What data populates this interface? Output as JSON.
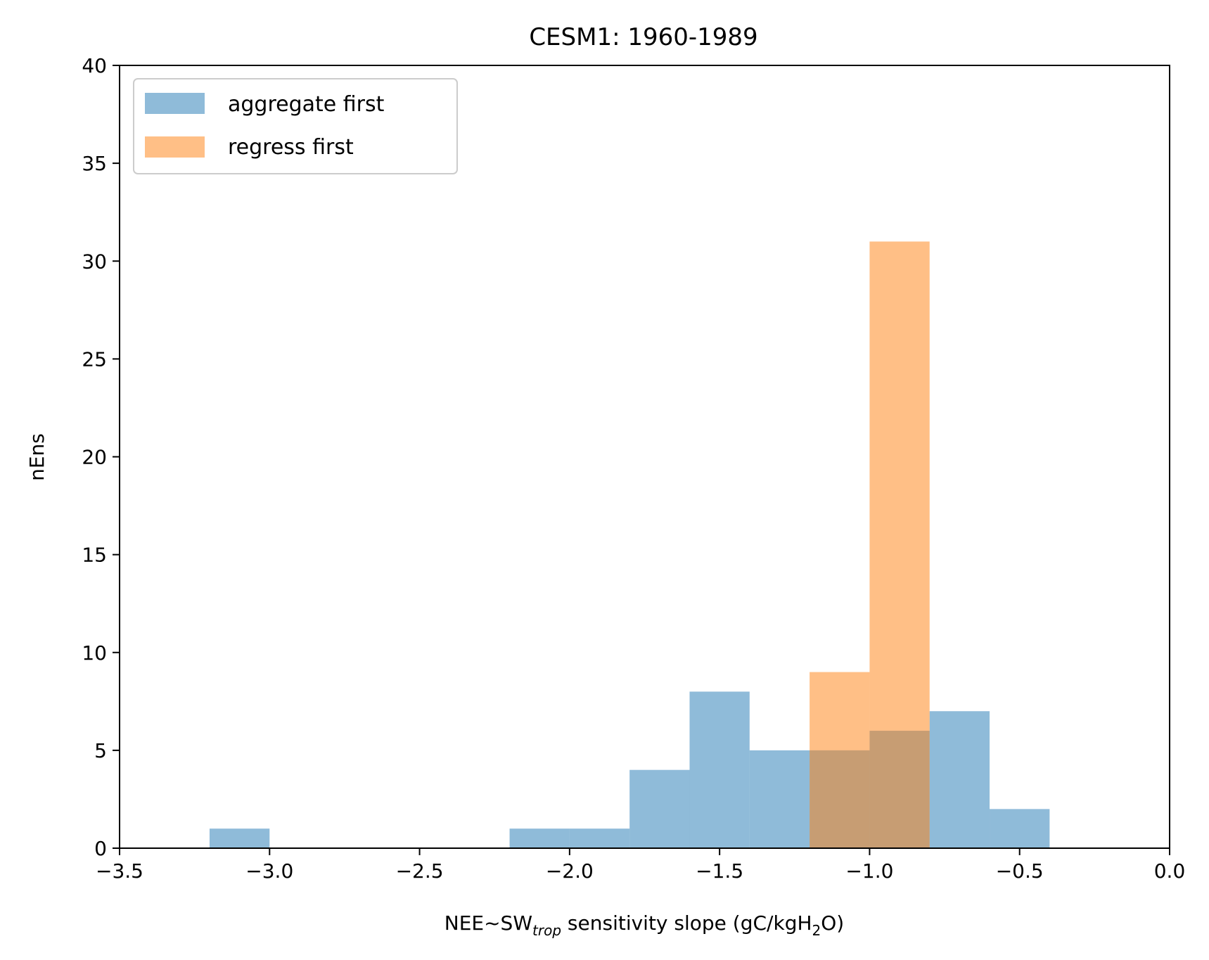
{
  "chart_data": {
    "type": "bar",
    "title": "CESM1: 1960-1989",
    "xlabel": {
      "prefix": "NEE~SW",
      "subscript": "trop",
      "middle": " sensitivity slope (gC/kgH",
      "subscript2": "2",
      "suffix": "O)"
    },
    "ylabel": "nEns",
    "xlim": [
      -3.5,
      0.0
    ],
    "ylim": [
      0,
      40
    ],
    "xticks": [
      -3.5,
      -3.0,
      -2.5,
      -2.0,
      -1.5,
      -1.0,
      -0.5,
      0.0
    ],
    "xtick_labels": [
      "−3.5",
      "−3.0",
      "−2.5",
      "−2.0",
      "−1.5",
      "−1.0",
      "−0.5",
      "0.0"
    ],
    "yticks": [
      0,
      5,
      10,
      15,
      20,
      25,
      30,
      35,
      40
    ],
    "ytick_labels": [
      "0",
      "5",
      "10",
      "15",
      "20",
      "25",
      "30",
      "35",
      "40"
    ],
    "grid": false,
    "legend_position": "top-left",
    "series": [
      {
        "name": "aggregate first",
        "color": "#1f77b4",
        "opacity": 0.5,
        "bins": [
          {
            "x0": -3.2,
            "x1": -3.0,
            "count": 1
          },
          {
            "x0": -2.2,
            "x1": -2.0,
            "count": 1
          },
          {
            "x0": -2.0,
            "x1": -1.8,
            "count": 1
          },
          {
            "x0": -1.8,
            "x1": -1.6,
            "count": 4
          },
          {
            "x0": -1.6,
            "x1": -1.4,
            "count": 8
          },
          {
            "x0": -1.4,
            "x1": -1.2,
            "count": 5
          },
          {
            "x0": -1.2,
            "x1": -1.0,
            "count": 5
          },
          {
            "x0": -1.0,
            "x1": -0.8,
            "count": 6
          },
          {
            "x0": -0.8,
            "x1": -0.6,
            "count": 7
          },
          {
            "x0": -0.6,
            "x1": -0.4,
            "count": 2
          }
        ]
      },
      {
        "name": "regress first",
        "color": "#ff7f0e",
        "opacity": 0.5,
        "bins": [
          {
            "x0": -1.2,
            "x1": -1.0,
            "count": 9
          },
          {
            "x0": -1.0,
            "x1": -0.8,
            "count": 31
          }
        ]
      }
    ]
  }
}
